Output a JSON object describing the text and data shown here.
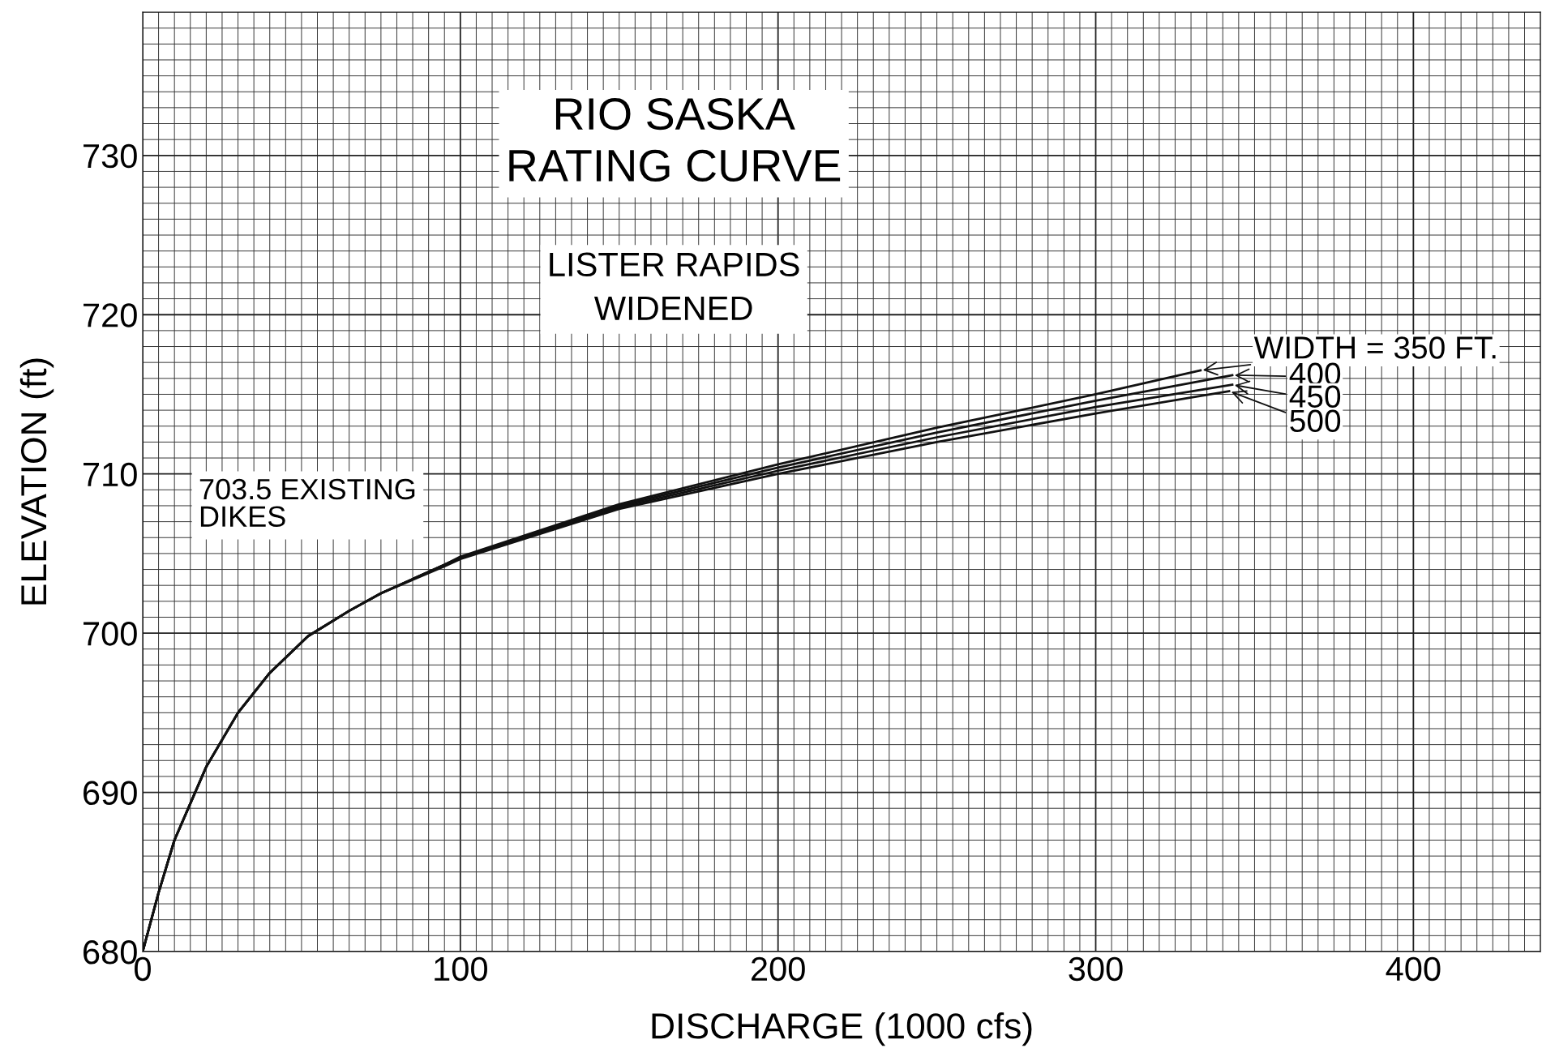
{
  "chart_data": {
    "type": "line",
    "title": "RIO SASKA\nRATING CURVE",
    "subtitle": "LISTER RAPIDS\nWIDENED",
    "xlabel": "DISCHARGE (1000 cfs)",
    "ylabel": "ELEVATION (ft)",
    "x": [
      0,
      5,
      10,
      20,
      30,
      40,
      52,
      65,
      75,
      95,
      100,
      150,
      200,
      250,
      300,
      333
    ],
    "series": [
      {
        "color": "#111111",
        "values": [
          680,
          683.7,
          687,
          691.6,
          695,
          697.5,
          699.8,
          701.4,
          702.5,
          704.3,
          704.8,
          708.1,
          710.6,
          712.9,
          715.0,
          716.5
        ]
      },
      {
        "color": "#111111",
        "x": [
          0,
          5,
          10,
          20,
          30,
          40,
          52,
          65,
          75,
          95,
          100,
          150,
          200,
          250,
          300,
          343
        ],
        "values": [
          680,
          683.7,
          687,
          691.6,
          695,
          697.5,
          699.8,
          701.4,
          702.5,
          704.3,
          704.75,
          708.0,
          710.4,
          712.6,
          714.6,
          716.2
        ]
      },
      {
        "color": "#111111",
        "x": [
          0,
          5,
          10,
          20,
          30,
          40,
          52,
          65,
          75,
          95,
          100,
          150,
          200,
          250,
          300,
          343
        ],
        "values": [
          680,
          683.7,
          687,
          691.6,
          695,
          697.5,
          699.8,
          701.4,
          702.5,
          704.3,
          704.7,
          707.9,
          710.2,
          712.3,
          714.2,
          715.6
        ]
      },
      {
        "color": "#111111",
        "x": [
          0,
          5,
          10,
          20,
          30,
          40,
          52,
          65,
          75,
          95,
          100,
          150,
          200,
          250,
          300,
          342
        ],
        "values": [
          680,
          683.7,
          687,
          691.6,
          695,
          697.5,
          699.8,
          701.4,
          702.5,
          704.2,
          704.65,
          707.8,
          710.0,
          712.0,
          713.8,
          715.2
        ]
      }
    ],
    "annotations": [
      {
        "text": "WIDTH = 350 FT.",
        "x": 333,
        "y": 716.5
      },
      {
        "text": "400",
        "x": 343,
        "y": 716.2
      },
      {
        "text": "450",
        "x": 343,
        "y": 715.6
      },
      {
        "text": "500",
        "x": 342,
        "y": 715.2
      },
      "703.5 EXISTING\nDIKES"
    ],
    "xlim": [
      0,
      440
    ],
    "ylim": [
      680,
      739
    ],
    "xticks": [
      0,
      100,
      200,
      300,
      400
    ],
    "yticks": [
      680,
      690,
      700,
      710,
      720,
      730
    ],
    "grid": true,
    "marker": "none",
    "line_style": "solid",
    "legend": false
  }
}
